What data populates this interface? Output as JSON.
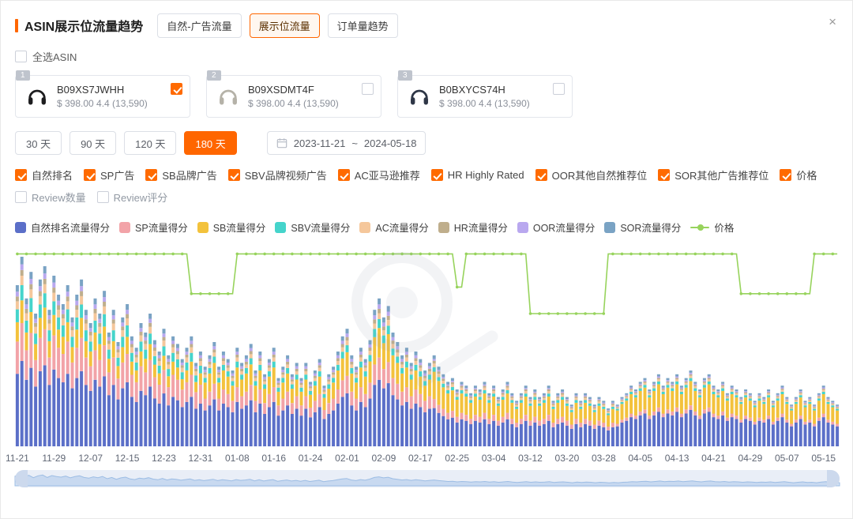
{
  "header": {
    "title": "ASIN展示位流量趋势",
    "tabs": [
      {
        "label": "自然-广告流量",
        "active": false
      },
      {
        "label": "展示位流量",
        "active": true
      },
      {
        "label": "订单量趋势",
        "active": false
      }
    ],
    "close_icon": "×"
  },
  "select_all": {
    "label": "全选ASIN",
    "checked": false
  },
  "asins": [
    {
      "index": "1",
      "asin": "B09XS7JWHH",
      "price_rating": "$ 398.00 4.4 (13,590)",
      "checked": true
    },
    {
      "index": "2",
      "asin": "B09XSDMT4F",
      "price_rating": "$ 398.00 4.4 (13,590)",
      "checked": false
    },
    {
      "index": "3",
      "asin": "B0BXYCS74H",
      "price_rating": "$ 398.00 4.4 (13,590)",
      "checked": false
    }
  ],
  "time_ranges": [
    {
      "label": "30 天",
      "active": false
    },
    {
      "label": "90 天",
      "active": false
    },
    {
      "label": "120 天",
      "active": false
    },
    {
      "label": "180 天",
      "active": true
    }
  ],
  "date_range": {
    "start": "2023-11-21",
    "separator": "~",
    "end": "2024-05-18"
  },
  "filters": {
    "row1": [
      {
        "label": "自然排名",
        "checked": true
      },
      {
        "label": "SP广告",
        "checked": true
      },
      {
        "label": "SB品牌广告",
        "checked": true
      },
      {
        "label": "SBV品牌视频广告",
        "checked": true
      },
      {
        "label": "AC亚马逊推荐",
        "checked": true
      },
      {
        "label": "HR Highly Rated",
        "checked": true
      },
      {
        "label": "OOR其他自然推荐位",
        "checked": true
      },
      {
        "label": "SOR其他广告推荐位",
        "checked": true
      },
      {
        "label": "价格",
        "checked": true
      }
    ],
    "row2": [
      {
        "label": "Review数量",
        "checked": false
      },
      {
        "label": "Review评分",
        "checked": false
      }
    ]
  },
  "chart_data": {
    "type": "bar",
    "stacked": true,
    "title": "ASIN展示位流量趋势",
    "x_tick_labels": [
      "11-21",
      "11-29",
      "12-07",
      "12-15",
      "12-23",
      "12-31",
      "01-08",
      "01-16",
      "01-24",
      "02-01",
      "02-09",
      "02-17",
      "02-25",
      "03-04",
      "03-12",
      "03-20",
      "03-28",
      "04-05",
      "04-13",
      "04-21",
      "04-29",
      "05-07",
      "05-15"
    ],
    "tick_interval": 8,
    "days": 180,
    "start_date": "2023-11-21",
    "end_date": "2024-05-18",
    "ylim": [
      0,
      105
    ],
    "grid": false,
    "legend_position": "top",
    "series": [
      {
        "name": "自然排名流量得分",
        "color": "#5B6FC8"
      },
      {
        "name": "SP流量得分",
        "color": "#F2A3A8"
      },
      {
        "name": "SB流量得分",
        "color": "#F3C23C"
      },
      {
        "name": "SBV流量得分",
        "color": "#45D4CB"
      },
      {
        "name": "AC流量得分",
        "color": "#F5C79B"
      },
      {
        "name": "HR流量得分",
        "color": "#BFAE8C"
      },
      {
        "name": "OOR流量得分",
        "color": "#B9A8EF"
      },
      {
        "name": "SOR流量得分",
        "color": "#7AA3C4"
      }
    ],
    "totals": [
      85,
      100,
      78,
      92,
      70,
      88,
      95,
      72,
      90,
      80,
      75,
      85,
      68,
      80,
      88,
      72,
      65,
      78,
      70,
      82,
      60,
      72,
      55,
      68,
      75,
      58,
      52,
      65,
      60,
      70,
      56,
      50,
      62,
      48,
      58,
      54,
      46,
      52,
      58,
      44,
      50,
      42,
      48,
      55,
      42,
      50,
      46,
      40,
      52,
      44,
      48,
      54,
      40,
      50,
      38,
      46,
      52,
      36,
      42,
      48,
      38,
      44,
      36,
      44,
      34,
      40,
      46,
      32,
      38,
      42,
      50,
      58,
      62,
      48,
      42,
      52,
      46,
      56,
      72,
      78,
      68,
      74,
      60,
      55,
      48,
      52,
      44,
      50,
      46,
      40,
      44,
      48,
      42,
      38,
      34,
      36,
      30,
      34,
      32,
      28,
      32,
      30,
      34,
      28,
      32,
      26,
      30,
      34,
      28,
      24,
      28,
      32,
      26,
      30,
      26,
      28,
      32,
      24,
      28,
      30,
      26,
      22,
      28,
      24,
      28,
      26,
      22,
      26,
      24,
      20,
      24,
      22,
      26,
      28,
      32,
      30,
      34,
      36,
      30,
      34,
      38,
      32,
      36,
      34,
      38,
      32,
      36,
      40,
      34,
      30,
      36,
      38,
      32,
      30,
      34,
      28,
      32,
      30,
      26,
      30,
      28,
      24,
      28,
      26,
      30,
      24,
      28,
      32,
      26,
      22,
      26,
      30,
      24,
      26,
      22,
      28,
      32,
      26,
      24,
      22
    ],
    "composition_eras": [
      {
        "from": 0,
        "to": 40,
        "fractions": [
          0.45,
          0.2,
          0.12,
          0.08,
          0.05,
          0.03,
          0.03,
          0.04
        ]
      },
      {
        "from": 41,
        "to": 90,
        "fractions": [
          0.45,
          0.15,
          0.2,
          0.06,
          0.04,
          0.03,
          0.03,
          0.04
        ]
      },
      {
        "from": 91,
        "to": 130,
        "fractions": [
          0.42,
          0.1,
          0.3,
          0.05,
          0.04,
          0.03,
          0.02,
          0.04
        ]
      },
      {
        "from": 131,
        "to": 179,
        "fractions": [
          0.48,
          0.06,
          0.32,
          0.04,
          0.03,
          0.02,
          0.02,
          0.03
        ]
      }
    ],
    "price": {
      "name": "价格",
      "color": "#97D35C",
      "axis_range": [
        370,
        400
      ],
      "segments": [
        {
          "from": 0,
          "to": 37,
          "value": 399
        },
        {
          "from": 38,
          "to": 47,
          "value": 393
        },
        {
          "from": 48,
          "to": 95,
          "value": 399
        },
        {
          "from": 96,
          "to": 97,
          "value": 394
        },
        {
          "from": 98,
          "to": 111,
          "value": 399
        },
        {
          "from": 112,
          "to": 128,
          "value": 390
        },
        {
          "from": 129,
          "to": 157,
          "value": 399
        },
        {
          "from": 158,
          "to": 173,
          "value": 393
        },
        {
          "from": 174,
          "to": 179,
          "value": 399
        }
      ]
    }
  }
}
